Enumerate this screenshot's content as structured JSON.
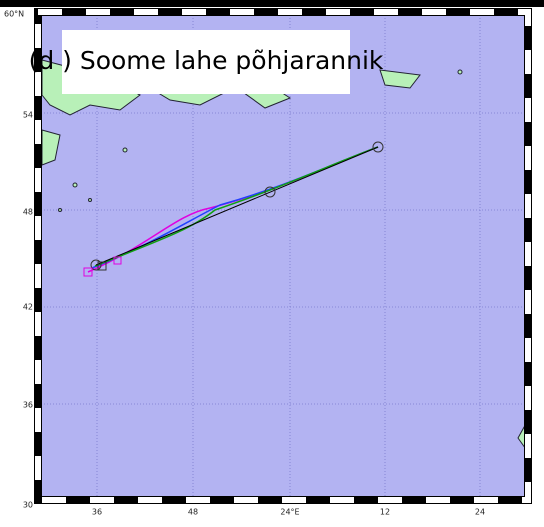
{
  "title": "(d ) Soome lahe põhjarannik",
  "lat_labels": [
    "60°N",
    "54",
    "48",
    "42",
    "36",
    "30"
  ],
  "lon_labels": [
    "36",
    "48",
    "24°E",
    "12",
    "24"
  ]
}
